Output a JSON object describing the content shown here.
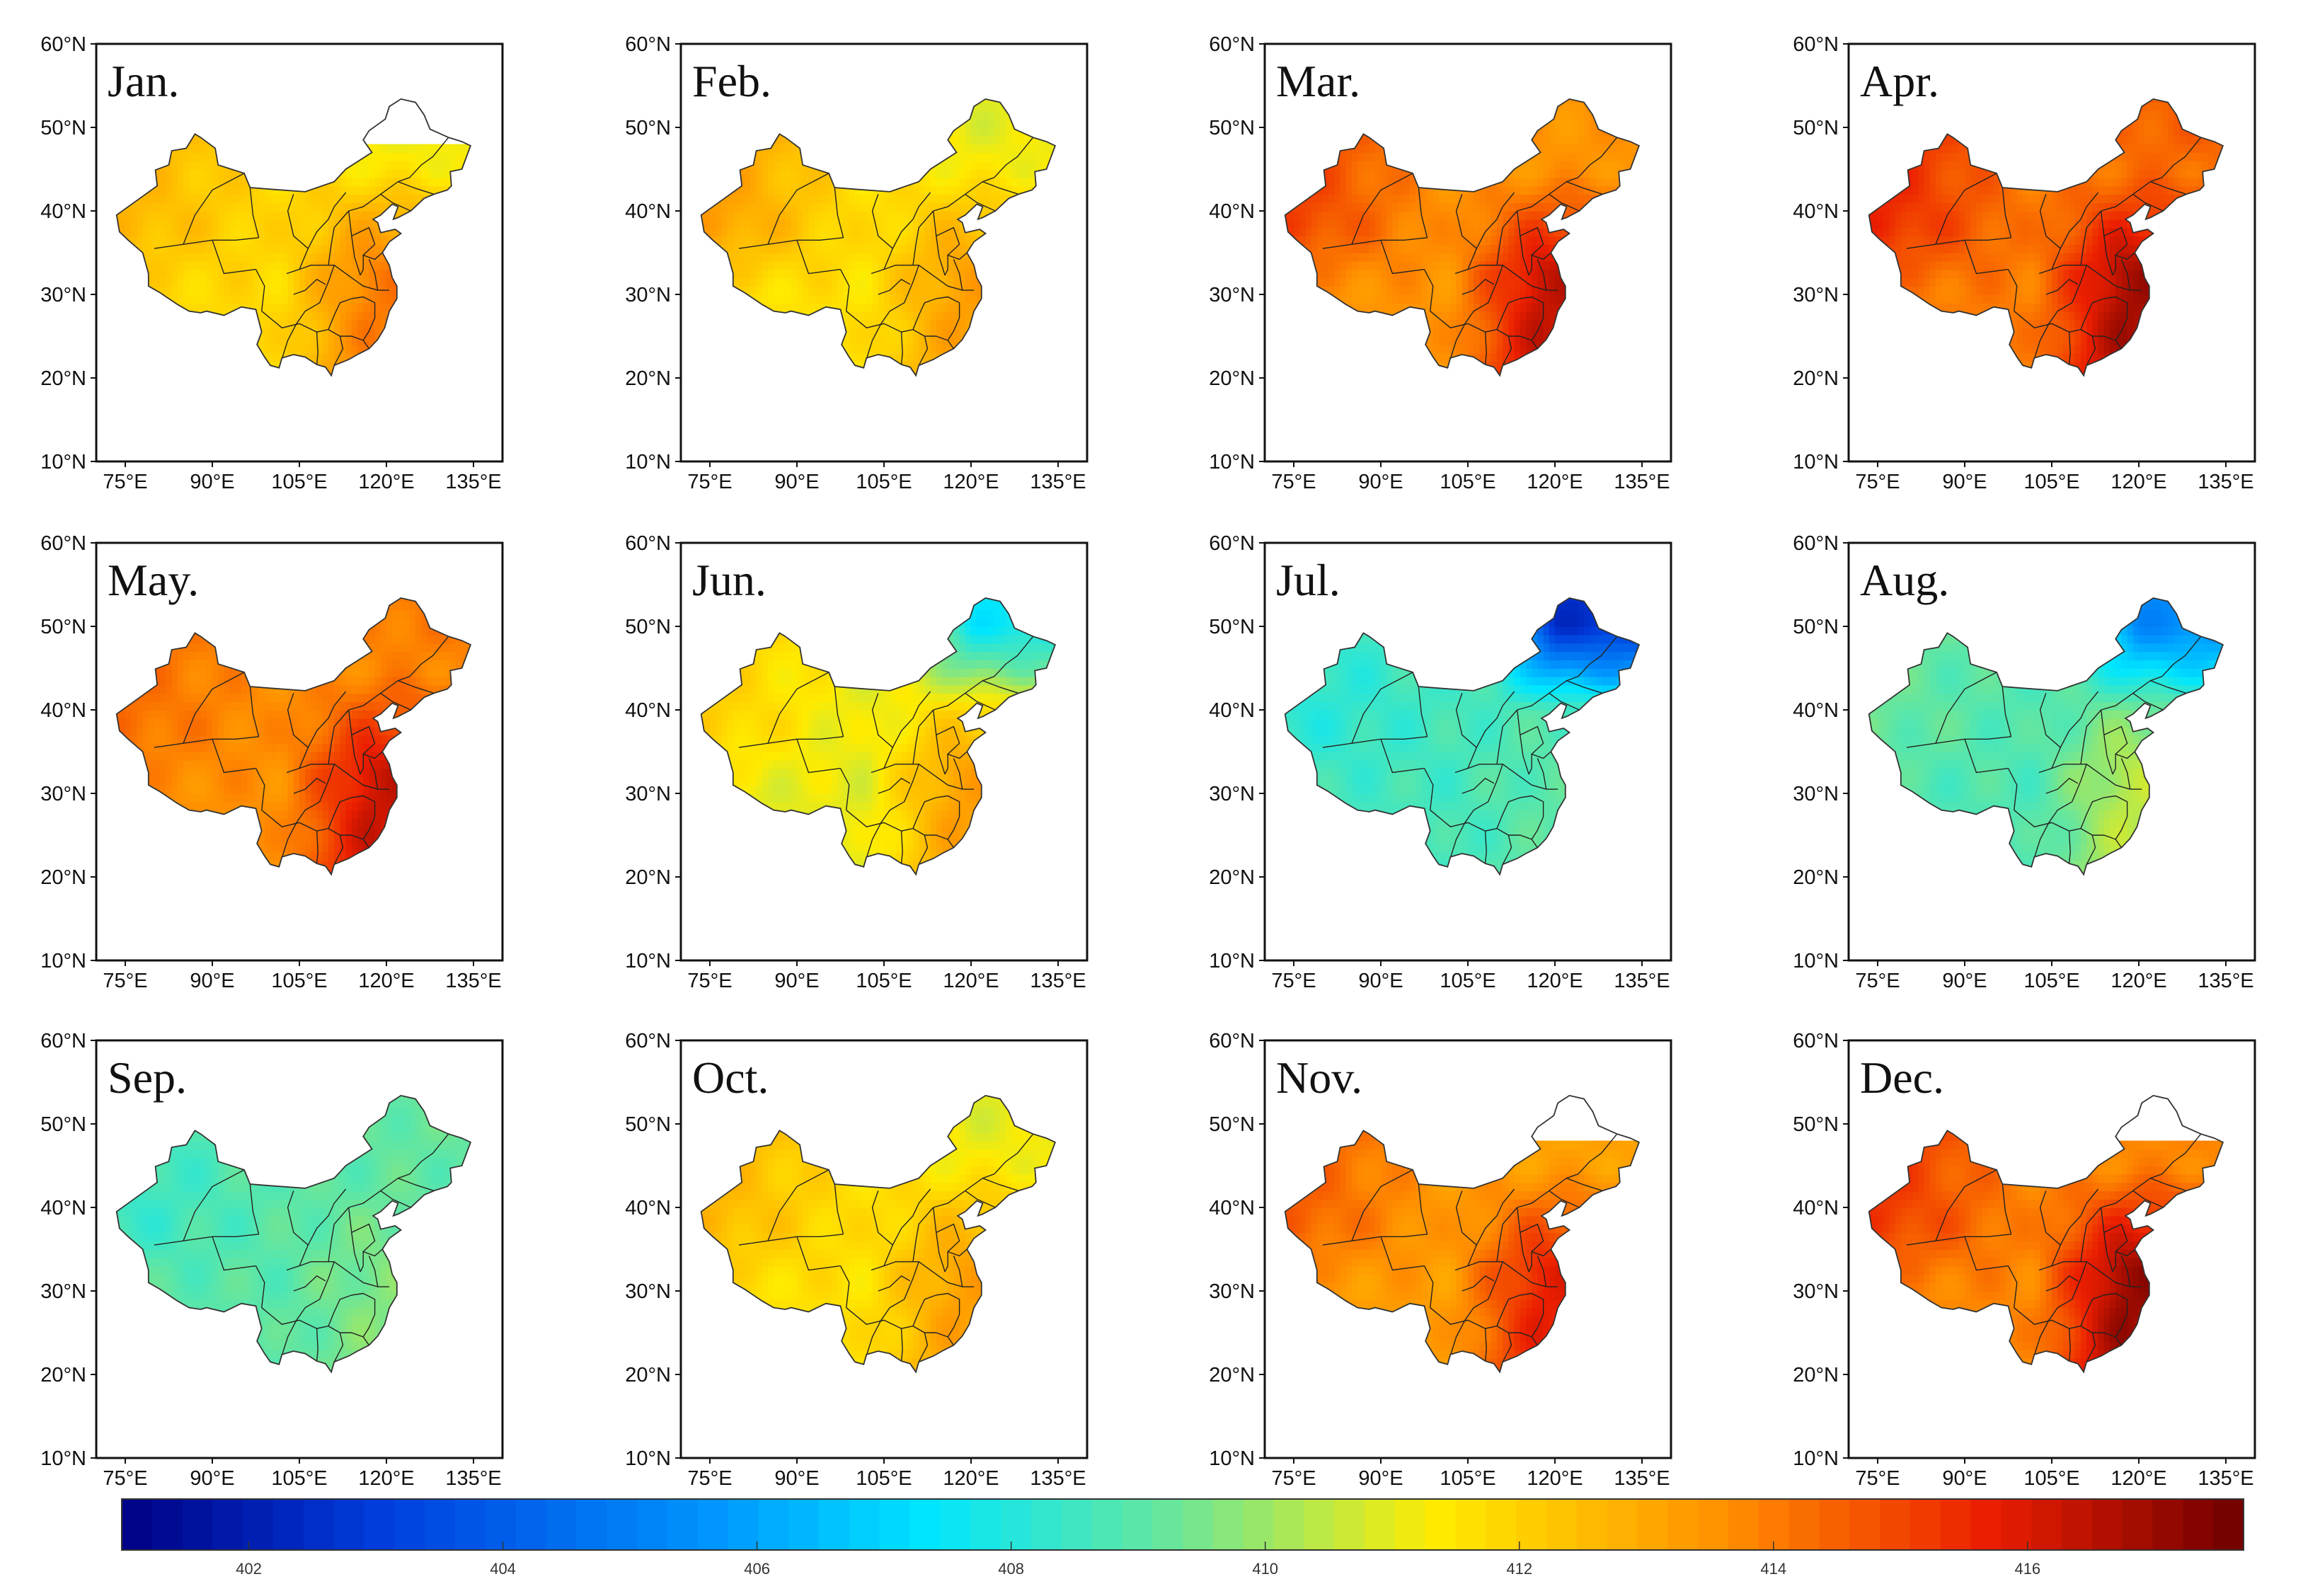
{
  "chart_data": {
    "type": "heatmap",
    "description_units": "monthly mean XCO2 (ppm)",
    "x_ticks": [
      "75°E",
      "90°E",
      "105°E",
      "120°E",
      "135°E"
    ],
    "y_ticks": [
      "60°N",
      "50°N",
      "40°N",
      "30°N",
      "20°N",
      "10°N"
    ],
    "x_range": [
      70,
      140
    ],
    "y_range": [
      10,
      60
    ],
    "colorbar": {
      "range": [
        401,
        417.7
      ],
      "ticks": [
        "402",
        "404",
        "406",
        "408",
        "410",
        "412",
        "414",
        "416"
      ],
      "tick_values": [
        402,
        404,
        406,
        408,
        410,
        412,
        414,
        416
      ]
    },
    "panels": [
      {
        "title": "Jan.",
        "base": 411.8,
        "west": 0.8,
        "east": 2.2,
        "north": -0.8,
        "blank_ne": true
      },
      {
        "title": "Feb.",
        "base": 411.6,
        "west": 1.6,
        "east": 1.6,
        "north": -0.6,
        "blank_ne": false
      },
      {
        "title": "Mar.",
        "base": 413.5,
        "west": 1.5,
        "east": 2.8,
        "north": 0.0,
        "blank_ne": false
      },
      {
        "title": "Apr.",
        "base": 414.0,
        "west": 1.5,
        "east": 2.8,
        "north": 0.5,
        "blank_ne": false
      },
      {
        "title": "May.",
        "base": 413.6,
        "west": 0.6,
        "east": 2.6,
        "north": 0.4,
        "blank_ne": false
      },
      {
        "title": "Jun.",
        "base": 411.0,
        "west": 1.0,
        "east": 2.2,
        "north": -3.5,
        "blank_ne": false
      },
      {
        "title": "Jul.",
        "base": 408.6,
        "west": -0.5,
        "east": 0.4,
        "north": -6.0,
        "blank_ne": false
      },
      {
        "title": "Aug.",
        "base": 408.8,
        "west": 0.4,
        "east": 1.6,
        "north": -3.5,
        "blank_ne": false
      },
      {
        "title": "Sep.",
        "base": 409.0,
        "west": -0.6,
        "east": 0.6,
        "north": 0.2,
        "blank_ne": false
      },
      {
        "title": "Oct.",
        "base": 411.6,
        "west": 1.0,
        "east": 1.6,
        "north": -0.6,
        "blank_ne": false
      },
      {
        "title": "Nov.",
        "base": 413.3,
        "west": 1.2,
        "east": 2.4,
        "north": -0.2,
        "blank_ne": true
      },
      {
        "title": "Dec.",
        "base": 413.8,
        "west": 1.4,
        "east": 3.2,
        "north": 0.0,
        "blank_ne": true
      }
    ]
  }
}
